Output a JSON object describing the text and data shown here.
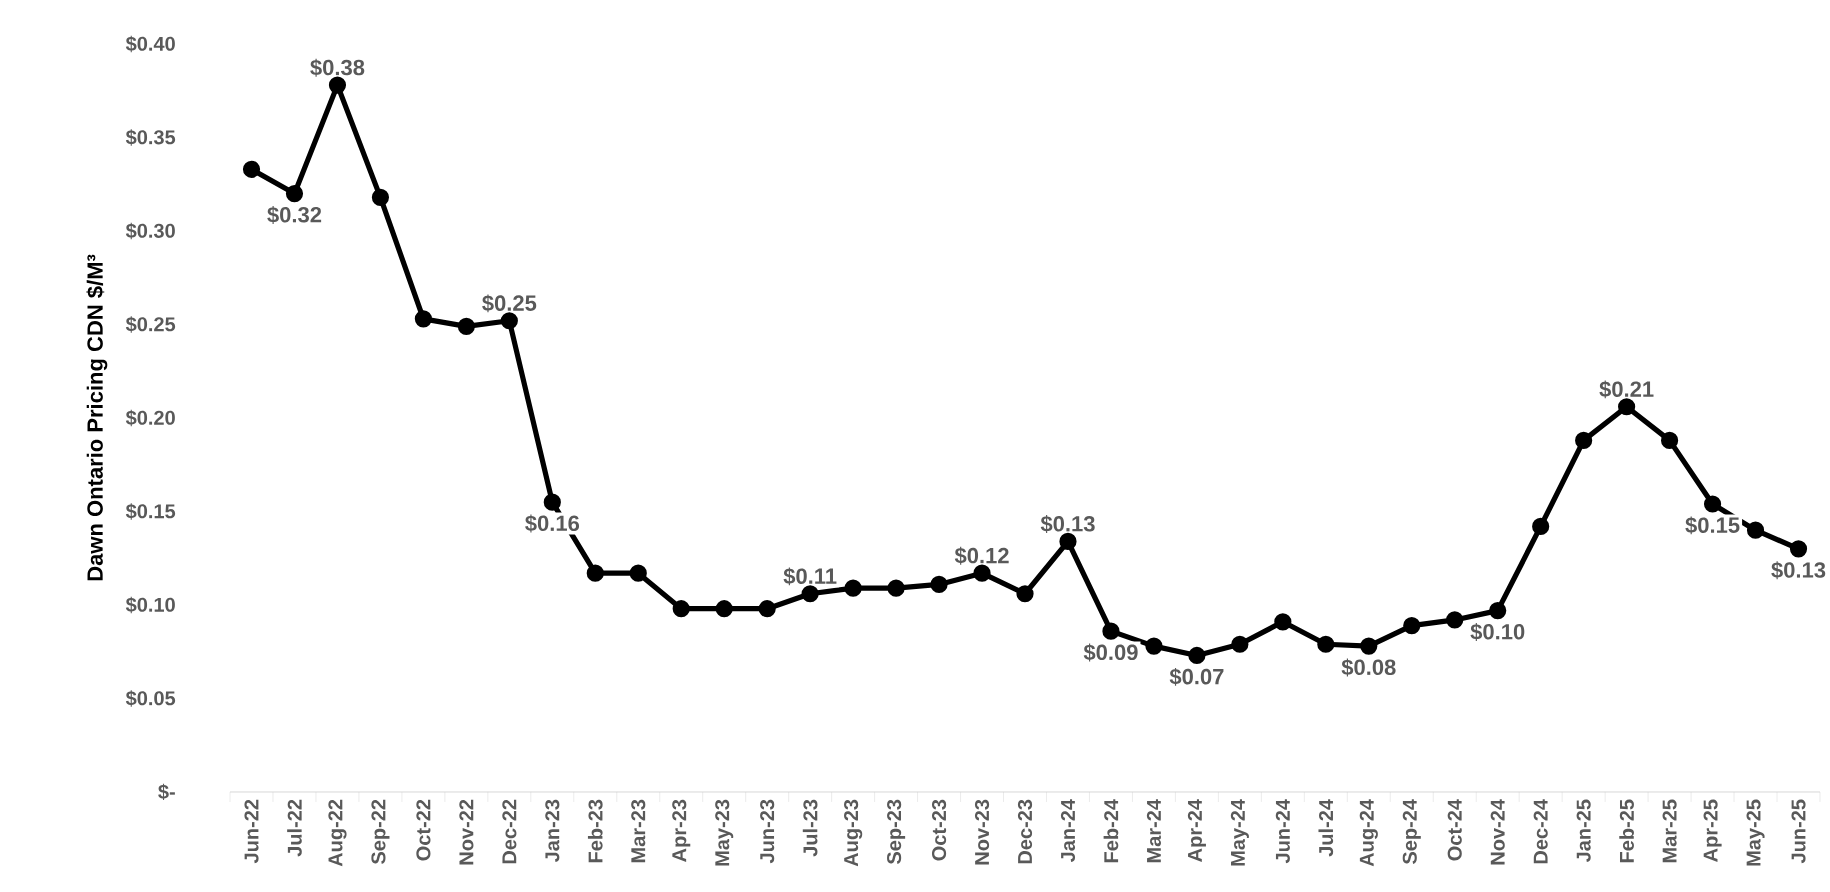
{
  "chart_data": {
    "type": "line",
    "ylabel": "Dawn Ontario Pricing CDN $/M³",
    "categories": [
      "Jun-22",
      "Jul-22",
      "Aug-22",
      "Sep-22",
      "Oct-22",
      "Nov-22",
      "Dec-22",
      "Jan-23",
      "Feb-23",
      "Mar-23",
      "Apr-23",
      "May-23",
      "Jun-23",
      "Jul-23",
      "Aug-23",
      "Sep-23",
      "Oct-23",
      "Nov-23",
      "Dec-23",
      "Jan-24",
      "Feb-24",
      "Mar-24",
      "Apr-24",
      "May-24",
      "Jun-24",
      "Jul-24",
      "Aug-24",
      "Sep-24",
      "Oct-24",
      "Nov-24",
      "Dec-24",
      "Jan-25",
      "Feb-25",
      "Mar-25",
      "Apr-25",
      "May-25",
      "Jun-25"
    ],
    "series": [
      {
        "color": "#000000",
        "values": [
          0.333,
          0.32,
          0.378,
          0.318,
          0.253,
          0.249,
          0.252,
          0.155,
          0.117,
          0.117,
          0.098,
          0.098,
          0.098,
          0.106,
          0.109,
          0.109,
          0.111,
          0.117,
          0.106,
          0.134,
          0.086,
          0.078,
          0.073,
          0.079,
          0.091,
          0.079,
          0.078,
          0.089,
          0.092,
          0.097,
          0.142,
          0.188,
          0.206,
          0.188,
          0.154,
          0.14,
          0.13
        ],
        "value_labels": [
          null,
          "$0.32",
          "$0.38",
          null,
          null,
          null,
          "$0.25",
          "$0.16",
          null,
          null,
          null,
          null,
          null,
          "$0.11",
          null,
          null,
          null,
          "$0.12",
          null,
          "$0.13",
          "$0.09",
          null,
          "$0.07",
          null,
          null,
          null,
          "$0.08",
          null,
          null,
          "$0.10",
          null,
          null,
          "$0.21",
          null,
          "$0.15",
          null,
          "$0.13"
        ]
      }
    ],
    "ylim": [
      0,
      0.4
    ],
    "yticks": [
      {
        "value": 0,
        "label": "$-"
      },
      {
        "value": 0.05,
        "label": "$0.05"
      },
      {
        "value": 0.1,
        "label": "$0.10"
      },
      {
        "value": 0.15,
        "label": "$0.15"
      },
      {
        "value": 0.2,
        "label": "$0.20"
      },
      {
        "value": 0.25,
        "label": "$0.25"
      },
      {
        "value": 0.3,
        "label": "$0.30"
      },
      {
        "value": 0.35,
        "label": "$0.35"
      },
      {
        "value": 0.4,
        "label": "$0.40"
      }
    ],
    "marker": "circle",
    "line_style": "solid"
  }
}
